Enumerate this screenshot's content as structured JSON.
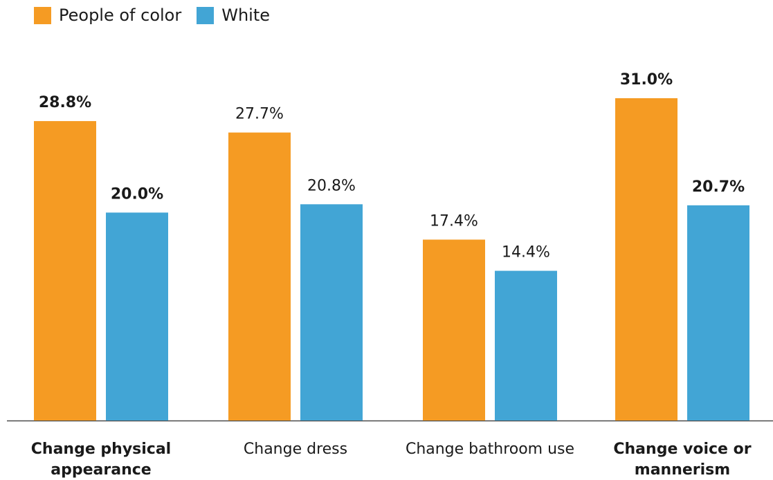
{
  "legend": {
    "items": [
      {
        "label": "People of color",
        "color": "#F59B23"
      },
      {
        "label": "White",
        "color": "#42A5D5"
      }
    ]
  },
  "chart_data": {
    "type": "bar",
    "categories": [
      "Change physical appearance",
      "Change dress",
      "Change bathroom use",
      "Change voice or mannerism"
    ],
    "category_label_lines": [
      [
        "Change physical",
        "appearance"
      ],
      [
        "Change dress"
      ],
      [
        "Change bathroom use"
      ],
      [
        "Change voice or",
        "mannerism"
      ]
    ],
    "category_label_bold": [
      true,
      false,
      false,
      true
    ],
    "series": [
      {
        "name": "People of color",
        "color": "#F59B23",
        "values": [
          28.8,
          27.7,
          17.4,
          31.0
        ],
        "labels": [
          "28.8%",
          "27.7%",
          "17.4%",
          "31.0%"
        ],
        "label_bold": [
          true,
          false,
          false,
          true
        ]
      },
      {
        "name": "White",
        "color": "#42A5D5",
        "values": [
          20.0,
          20.8,
          14.4,
          20.7
        ],
        "labels": [
          "20.0%",
          "20.8%",
          "14.4%",
          "20.7%"
        ],
        "label_bold": [
          true,
          false,
          false,
          true
        ]
      }
    ],
    "ylim": [
      0,
      31.0
    ],
    "grid": false,
    "legend_position": "top-left"
  }
}
